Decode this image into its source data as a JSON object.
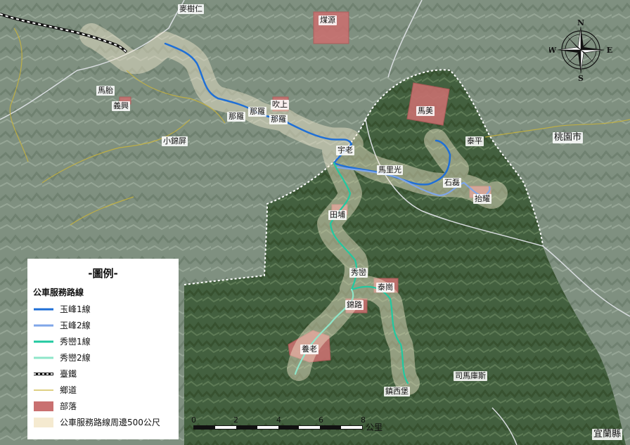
{
  "map": {
    "places": {
      "maishuren": "麥樹仁",
      "meiyuan": "煤源",
      "mataian": "馬胎",
      "yixing": "義興",
      "xiaojinping": "小錦屏",
      "naluo1": "那羅",
      "naluo2": "那羅",
      "naluo3": "那羅",
      "chuishang": "吹上",
      "yulao": "宇老",
      "mameibu": "馬美",
      "taiping": "泰平",
      "malixiang": "馬里光",
      "shilei": "石磊",
      "tailuo": "抬耀",
      "tianpu": "田埔",
      "xiuluan": "秀巒",
      "taigang": "泰崗",
      "jinlu": "錦路",
      "yanglao": "養老",
      "zhenxibao": "鎮西堡",
      "simakusi": "司馬庫斯",
      "taoyuan": "桃園市",
      "yilan": "宜蘭縣"
    },
    "compass": {
      "n": "N",
      "s": "S",
      "e": "E",
      "w": "W"
    }
  },
  "legend": {
    "title": "-圖例-",
    "section": "公車服務路線",
    "items": [
      {
        "label": "玉峰1線",
        "color": "#1f6fd6",
        "type": "route"
      },
      {
        "label": "玉峰2線",
        "color": "#7fa6e8",
        "type": "route"
      },
      {
        "label": "秀巒1線",
        "color": "#21c9a0",
        "type": "route"
      },
      {
        "label": "秀巒2線",
        "color": "#8ee6c9",
        "type": "route"
      },
      {
        "label": "臺鐵",
        "color": "#111111",
        "type": "rail"
      },
      {
        "label": "鄉道",
        "color": "#c9b43a",
        "type": "road"
      },
      {
        "label": "部落",
        "color": "#c97070",
        "type": "area"
      },
      {
        "label": "公車服務路線周邊500公尺",
        "color": "#f5ead0",
        "type": "buffer"
      }
    ]
  },
  "scale": {
    "ticks": [
      "0",
      "2",
      "4",
      "6",
      "8"
    ],
    "unit": "公里"
  }
}
